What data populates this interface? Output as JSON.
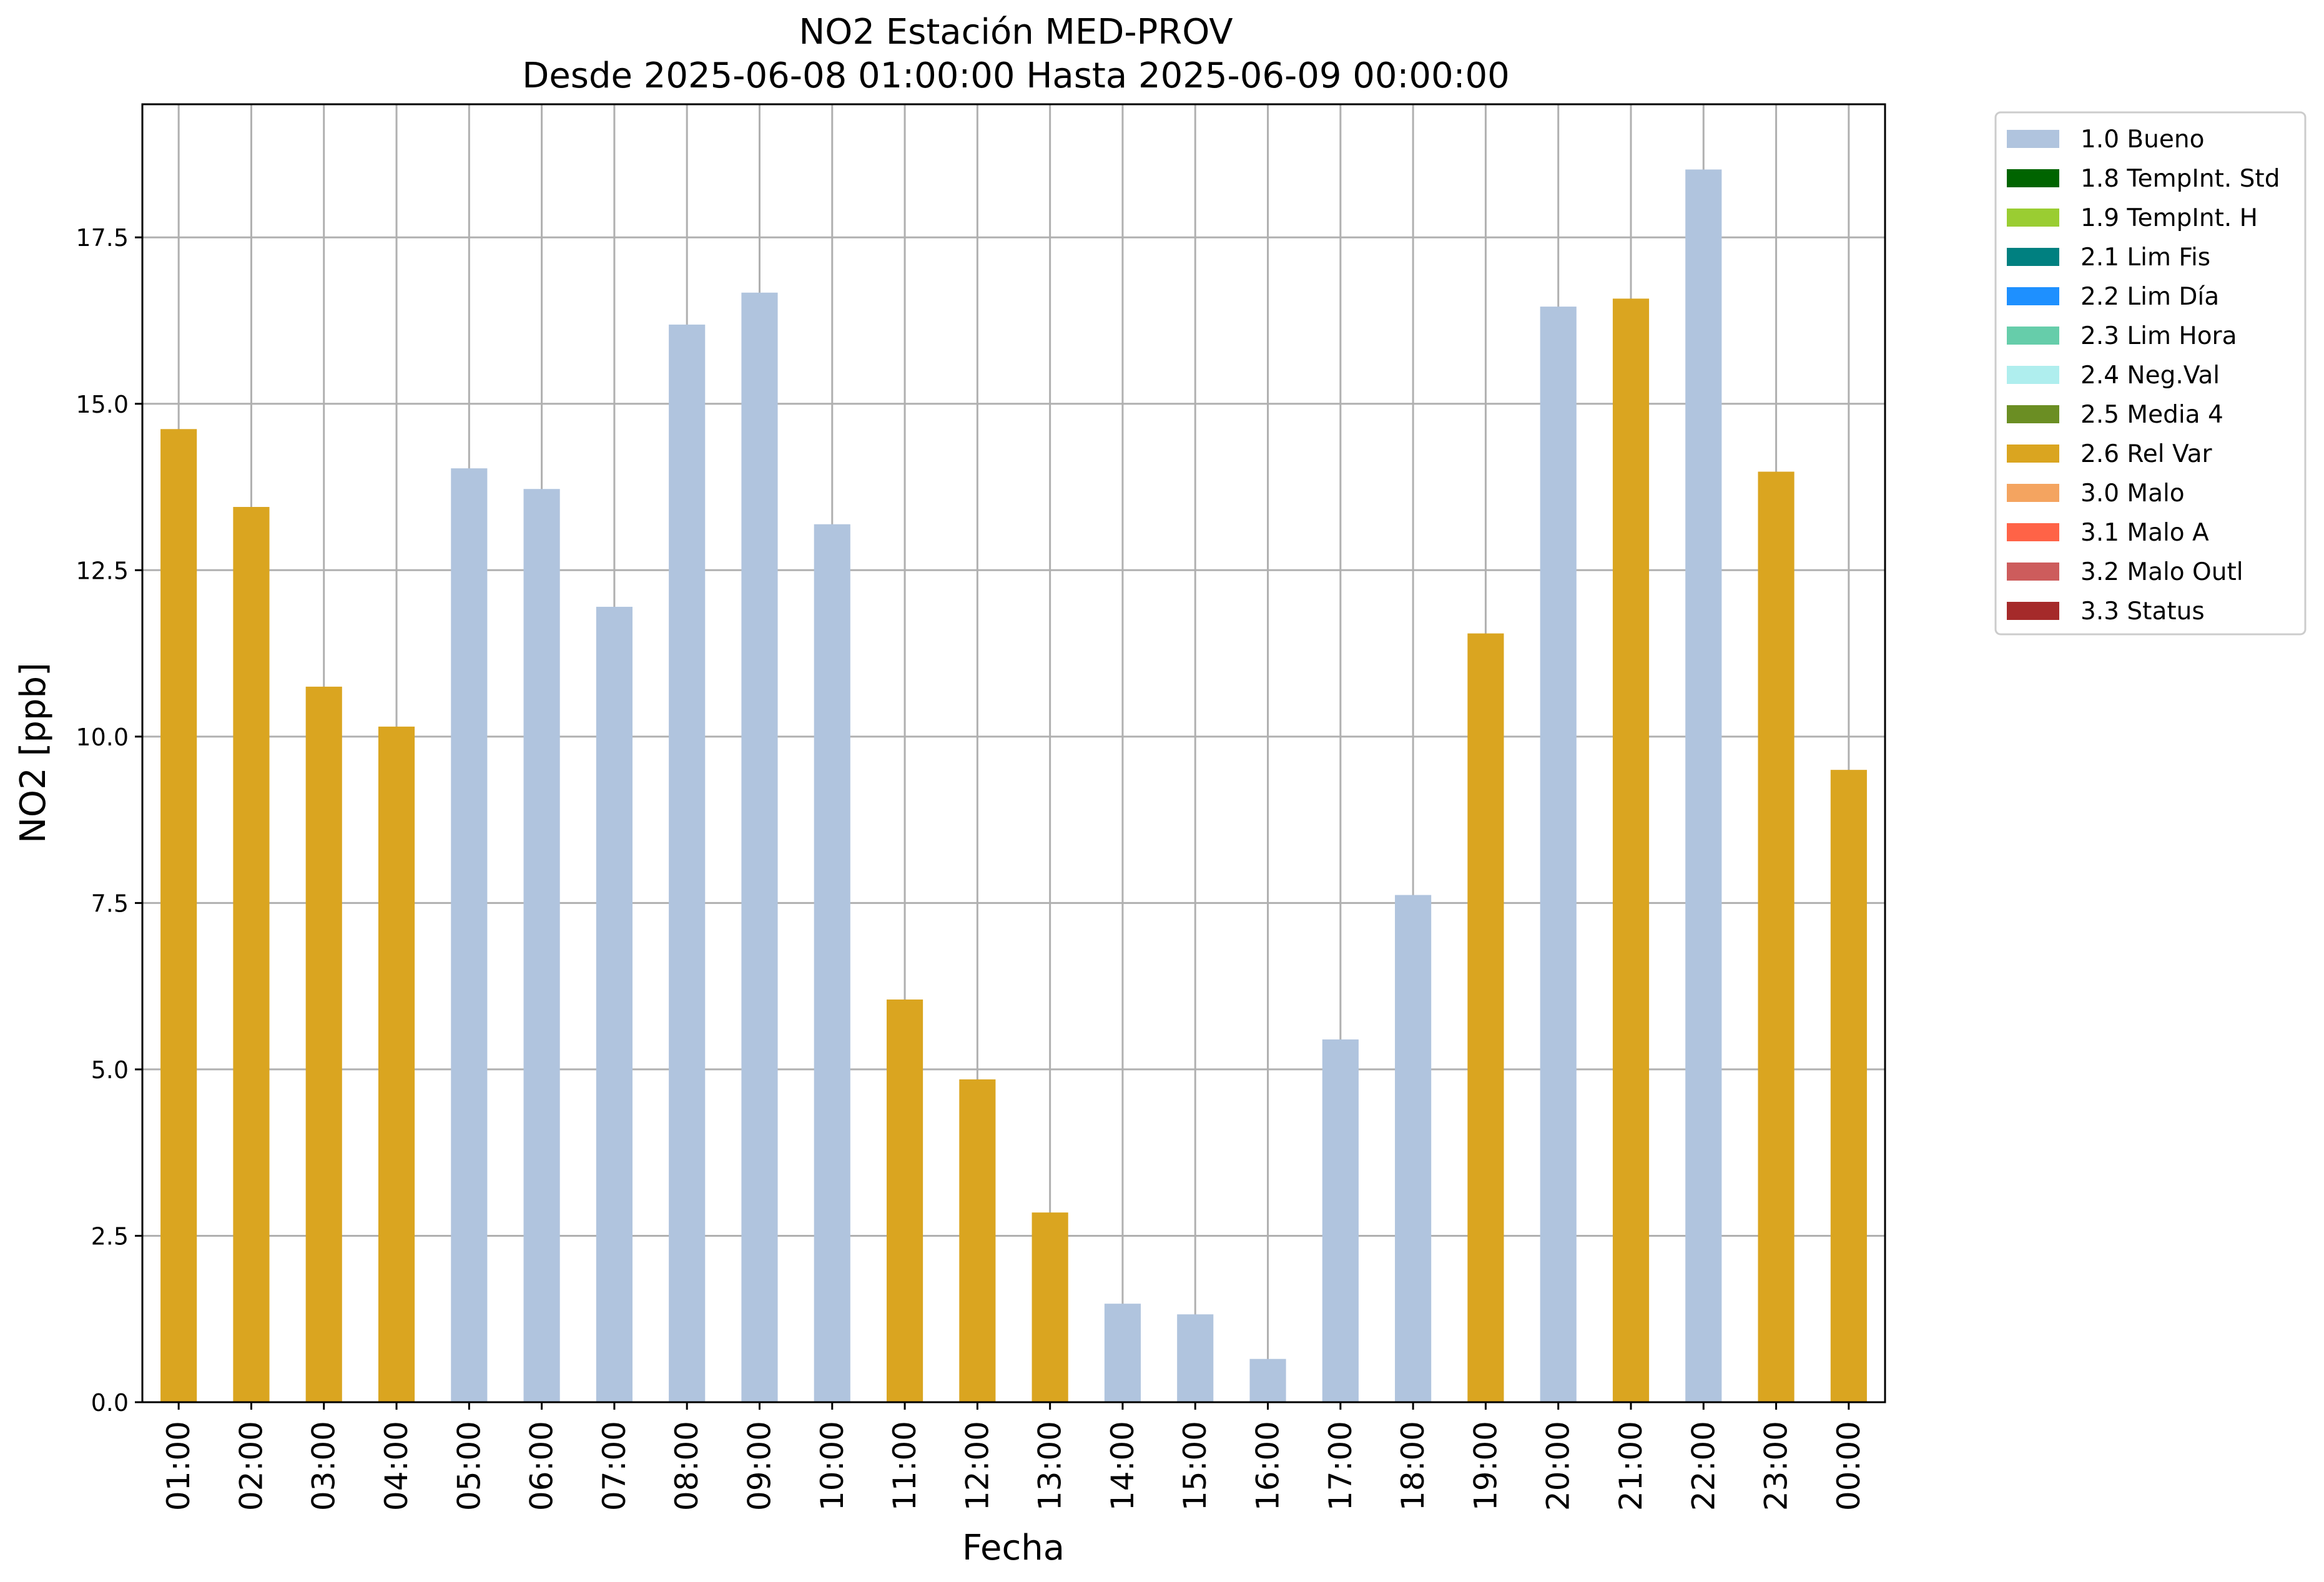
{
  "chart_data": {
    "type": "bar",
    "title": "NO2 Estación MED-PROV",
    "subtitle": "Desde 2025-06-08 01:00:00 Hasta 2025-06-09 00:00:00",
    "xlabel": "Fecha",
    "ylabel": "NO2 [ppb]",
    "ylim": [
      0,
      19.5
    ],
    "yticks": [
      0.0,
      2.5,
      5.0,
      7.5,
      10.0,
      12.5,
      15.0,
      17.5
    ],
    "ytick_labels": [
      "0.0",
      "2.5",
      "5.0",
      "7.5",
      "10.0",
      "12.5",
      "15.0",
      "17.5"
    ],
    "grid": true,
    "legend_position": "outside-right-top",
    "categories": [
      "01:00",
      "02:00",
      "03:00",
      "04:00",
      "05:00",
      "06:00",
      "07:00",
      "08:00",
      "09:00",
      "10:00",
      "11:00",
      "12:00",
      "13:00",
      "14:00",
      "15:00",
      "16:00",
      "17:00",
      "18:00",
      "19:00",
      "20:00",
      "21:00",
      "22:00",
      "23:00",
      "00:00"
    ],
    "values": [
      14.62,
      13.45,
      10.75,
      10.15,
      14.03,
      13.72,
      11.95,
      16.19,
      16.67,
      13.19,
      6.05,
      4.85,
      2.85,
      1.48,
      1.32,
      0.65,
      5.45,
      7.62,
      11.55,
      16.46,
      16.58,
      18.52,
      13.98,
      9.5
    ],
    "bar_status": [
      "2.6 Rel Var",
      "2.6 Rel Var",
      "2.6 Rel Var",
      "2.6 Rel Var",
      "1.0 Bueno",
      "1.0 Bueno",
      "1.0 Bueno",
      "1.0 Bueno",
      "1.0 Bueno",
      "1.0 Bueno",
      "2.6 Rel Var",
      "2.6 Rel Var",
      "2.6 Rel Var",
      "1.0 Bueno",
      "1.0 Bueno",
      "1.0 Bueno",
      "1.0 Bueno",
      "1.0 Bueno",
      "2.6 Rel Var",
      "1.0 Bueno",
      "2.6 Rel Var",
      "1.0 Bueno",
      "2.6 Rel Var",
      "2.6 Rel Var"
    ],
    "legend": [
      {
        "label": "1.0 Bueno",
        "color": "#b0c4de"
      },
      {
        "label": "1.8 TempInt. Std",
        "color": "#006400"
      },
      {
        "label": "1.9 TempInt. H",
        "color": "#9acd32"
      },
      {
        "label": "2.1 Lim Fis",
        "color": "#008080"
      },
      {
        "label": "2.2 Lim Día",
        "color": "#1e90ff"
      },
      {
        "label": "2.3 Lim Hora",
        "color": "#66cdaa"
      },
      {
        "label": "2.4 Neg.Val",
        "color": "#afeeee"
      },
      {
        "label": "2.5 Media 4",
        "color": "#6b8e23"
      },
      {
        "label": "2.6 Rel Var",
        "color": "#daa520"
      },
      {
        "label": "3.0 Malo",
        "color": "#f4a460"
      },
      {
        "label": "3.1 Malo A",
        "color": "#ff6347"
      },
      {
        "label": "3.2 Malo Outl",
        "color": "#cd5c5c"
      },
      {
        "label": "3.3 Status",
        "color": "#a52a2a"
      }
    ]
  }
}
